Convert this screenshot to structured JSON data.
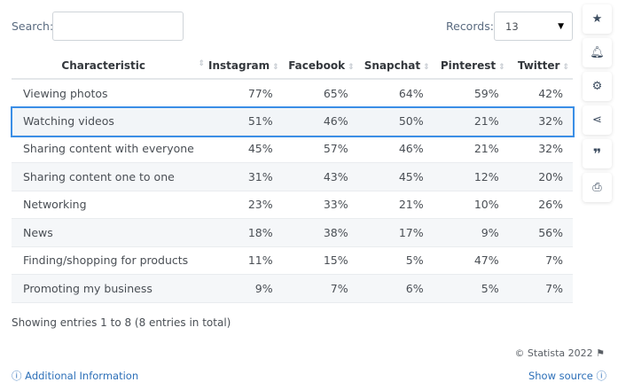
{
  "search": {
    "label": "Search:",
    "value": ""
  },
  "records": {
    "label": "Records:",
    "value": "13"
  },
  "table": {
    "headers": [
      "Characteristic",
      "Instagram",
      "Facebook",
      "Snapchat",
      "Pinterest",
      "Twitter"
    ],
    "rows": [
      [
        "Viewing photos",
        "77%",
        "65%",
        "64%",
        "59%",
        "42%"
      ],
      [
        "Watching videos",
        "51%",
        "46%",
        "50%",
        "21%",
        "32%"
      ],
      [
        "Sharing content with everyone",
        "45%",
        "57%",
        "46%",
        "21%",
        "32%"
      ],
      [
        "Sharing content one to one",
        "31%",
        "43%",
        "45%",
        "12%",
        "20%"
      ],
      [
        "Networking",
        "23%",
        "33%",
        "21%",
        "10%",
        "26%"
      ],
      [
        "News",
        "18%",
        "38%",
        "17%",
        "9%",
        "56%"
      ],
      [
        "Finding/shopping for products",
        "11%",
        "15%",
        "5%",
        "47%",
        "7%"
      ],
      [
        "Promoting my business",
        "9%",
        "7%",
        "6%",
        "5%",
        "7%"
      ]
    ]
  },
  "footer": {
    "entries": "Showing entries 1 to 8 (8 entries in total)",
    "copyright": "© Statista 2022",
    "additional": "Additional Information",
    "source": "Show source"
  },
  "sidebar": [
    "star-icon",
    "bell-icon",
    "gear-icon",
    "share-icon",
    "quote-icon",
    "print-icon"
  ]
}
